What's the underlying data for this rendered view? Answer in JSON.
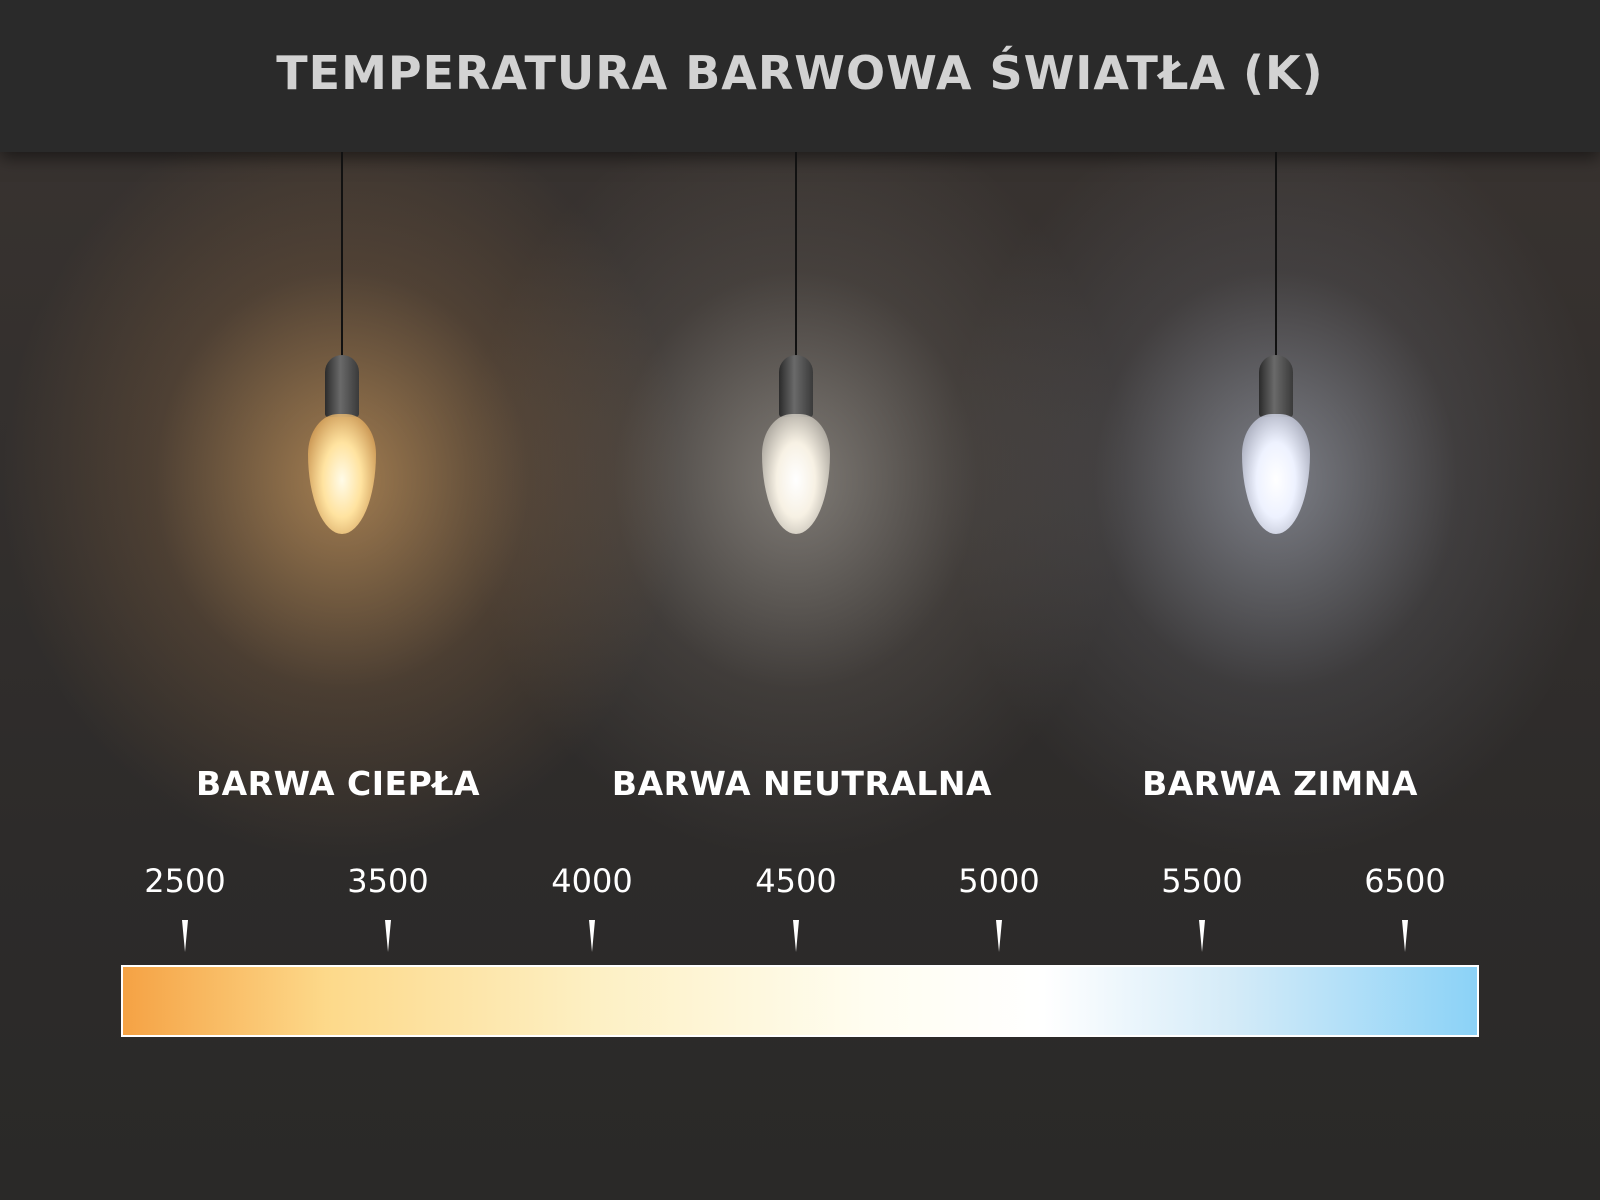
{
  "title": "TEMPERATURA BARWOWA ŚWIATŁA (K)",
  "lamps": [
    {
      "label": "BARWA CIEPŁA",
      "glow": "#ffcf8a"
    },
    {
      "label": "BARWA NEUTRALNA",
      "glow": "#fbf6ea"
    },
    {
      "label": "BARWA ZIMNA",
      "glow": "#e8efff"
    }
  ],
  "scale": {
    "unit": "K",
    "ticks": [
      "2500",
      "3500",
      "4000",
      "4500",
      "5000",
      "5500",
      "6500"
    ],
    "gradient_colors": [
      "#f5a244",
      "#fdd98a",
      "#fdf0c4",
      "#ffffff",
      "#d4ebf8",
      "#8bd2f7"
    ]
  }
}
